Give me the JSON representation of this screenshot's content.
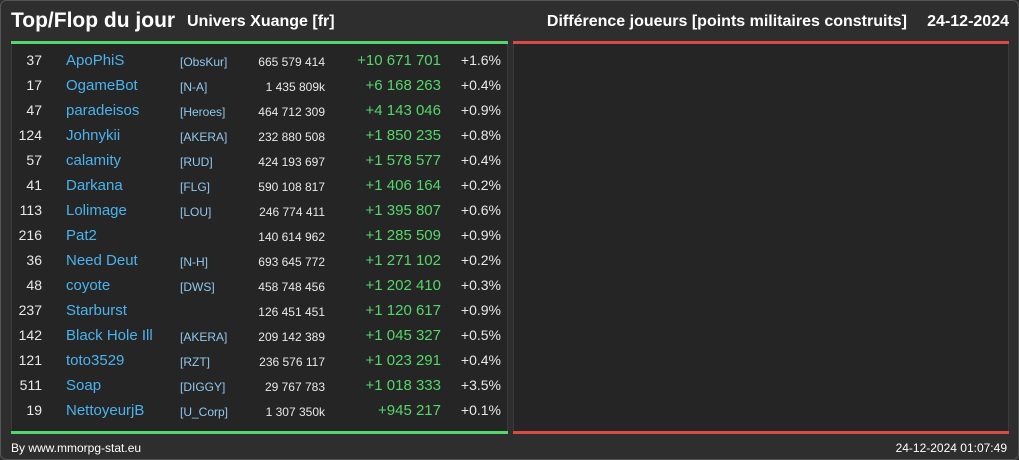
{
  "header": {
    "title": "Top/Flop du jour",
    "universe": "Univers Xuange [fr]",
    "subtitle": "Différence joueurs [points militaires construits]",
    "date": "24-12-2024"
  },
  "colors": {
    "background": "#2e2e2e",
    "panel": "#252525",
    "top_accent": "#55d66b",
    "flop_accent": "#d84a43",
    "player_link": "#4ab3ee",
    "positive_diff": "#55d66b"
  },
  "top_rows": [
    {
      "rank": "37",
      "player": "ApoPhiS",
      "alliance": "[ObsKur]",
      "points": "665 579 414",
      "diff": "+10 671 701",
      "pct": "+1.6%"
    },
    {
      "rank": "17",
      "player": "OgameBot",
      "alliance": "[N-A]",
      "points": "1 435 809k",
      "diff": "+6 168 263",
      "pct": "+0.4%"
    },
    {
      "rank": "47",
      "player": "paradeisos",
      "alliance": "[Heroes]",
      "points": "464 712 309",
      "diff": "+4 143 046",
      "pct": "+0.9%"
    },
    {
      "rank": "124",
      "player": "Johnykii",
      "alliance": "[AKERA]",
      "points": "232 880 508",
      "diff": "+1 850 235",
      "pct": "+0.8%"
    },
    {
      "rank": "57",
      "player": "calamity",
      "alliance": "[RUD]",
      "points": "424 193 697",
      "diff": "+1 578 577",
      "pct": "+0.4%"
    },
    {
      "rank": "41",
      "player": "Darkana",
      "alliance": "[FLG]",
      "points": "590 108 817",
      "diff": "+1 406 164",
      "pct": "+0.2%"
    },
    {
      "rank": "113",
      "player": "Lolimage",
      "alliance": "[LOU]",
      "points": "246 774 411",
      "diff": "+1 395 807",
      "pct": "+0.6%"
    },
    {
      "rank": "216",
      "player": "Pat2",
      "alliance": "",
      "points": "140 614 962",
      "diff": "+1 285 509",
      "pct": "+0.9%"
    },
    {
      "rank": "36",
      "player": "Need Deut",
      "alliance": "[N-H]",
      "points": "693 645 772",
      "diff": "+1 271 102",
      "pct": "+0.2%"
    },
    {
      "rank": "48",
      "player": "coyote",
      "alliance": "[DWS]",
      "points": "458 748 456",
      "diff": "+1 202 410",
      "pct": "+0.3%"
    },
    {
      "rank": "237",
      "player": "Starburst",
      "alliance": "",
      "points": "126 451 451",
      "diff": "+1 120 617",
      "pct": "+0.9%"
    },
    {
      "rank": "142",
      "player": "Black Hole Ill",
      "alliance": "[AKERA]",
      "points": "209 142 389",
      "diff": "+1 045 327",
      "pct": "+0.5%"
    },
    {
      "rank": "121",
      "player": "toto3529",
      "alliance": "[RZT]",
      "points": "236 576 117",
      "diff": "+1 023 291",
      "pct": "+0.4%"
    },
    {
      "rank": "511",
      "player": "Soap",
      "alliance": "[DIGGY]",
      "points": "29 767 783",
      "diff": "+1 018 333",
      "pct": "+3.5%"
    },
    {
      "rank": "19",
      "player": "NettoyeurjB",
      "alliance": "[U_Corp]",
      "points": "1 307 350k",
      "diff": "+945 217",
      "pct": "+0.1%"
    }
  ],
  "footer": {
    "credit": "By www.mmorpg-stat.eu",
    "timestamp": "24-12-2024 01:07:49"
  }
}
